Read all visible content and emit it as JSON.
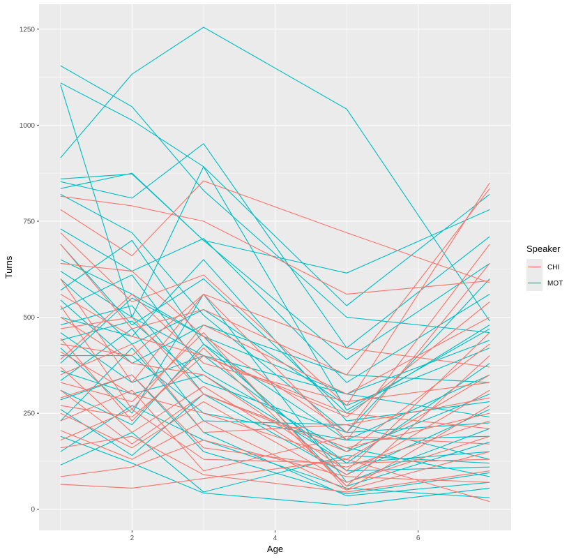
{
  "chart_data": {
    "type": "line",
    "title": "",
    "xlabel": "Age",
    "ylabel": "Turns",
    "xlim": [
      0.7,
      7.3
    ],
    "ylim": [
      -55,
      1315
    ],
    "x_ticks": [
      2,
      4,
      6
    ],
    "x_tick_labels": [
      "2",
      "4",
      "6"
    ],
    "y_ticks": [
      0,
      250,
      500,
      750,
      1000,
      1250
    ],
    "y_tick_labels": [
      "0",
      "250",
      "500",
      "750",
      "1000",
      "1250"
    ],
    "x": [
      1,
      2,
      3,
      5,
      7
    ],
    "grid": true,
    "legend": {
      "title": "Speaker",
      "placement": "right",
      "entries": [
        {
          "label": "CHI",
          "color": "#F8766D"
        },
        {
          "label": "MOT",
          "color": "#00BFC4"
        }
      ]
    },
    "series": [
      {
        "name": "MOT",
        "speaker": "MOT",
        "values": [
          1155,
          1048,
          830,
          500,
          460
        ]
      },
      {
        "name": "MOT",
        "speaker": "MOT",
        "values": [
          1110,
          1013,
          892,
          530,
          820
        ]
      },
      {
        "name": "MOT",
        "speaker": "MOT",
        "values": [
          1105,
          500,
          892,
          258,
          470
        ]
      },
      {
        "name": "MOT",
        "speaker": "MOT",
        "values": [
          915,
          1133,
          1255,
          1042,
          490
        ]
      },
      {
        "name": "MOT",
        "speaker": "MOT",
        "values": [
          860,
          873,
          700,
          615,
          780
        ]
      },
      {
        "name": "MOT",
        "speaker": "MOT",
        "values": [
          853,
          810,
          952,
          420,
          710
        ]
      },
      {
        "name": "MOT",
        "speaker": "MOT",
        "values": [
          835,
          875,
          700,
          390,
          640
        ]
      },
      {
        "name": "MOT",
        "speaker": "MOT",
        "values": [
          820,
          720,
          505,
          200,
          600
        ]
      },
      {
        "name": "MOT",
        "speaker": "MOT",
        "values": [
          730,
          620,
          705,
          330,
          560
        ]
      },
      {
        "name": "MOT",
        "speaker": "MOT",
        "values": [
          690,
          480,
          600,
          250,
          480
        ]
      },
      {
        "name": "MOT",
        "speaker": "MOT",
        "values": [
          650,
          560,
          450,
          300,
          440
        ]
      },
      {
        "name": "MOT",
        "speaker": "MOT",
        "values": [
          620,
          500,
          400,
          120,
          380
        ]
      },
      {
        "name": "MOT",
        "speaker": "MOT",
        "values": [
          600,
          430,
          520,
          270,
          420
        ]
      },
      {
        "name": "MOT",
        "speaker": "MOT",
        "values": [
          570,
          700,
          430,
          180,
          350
        ]
      },
      {
        "name": "MOT",
        "speaker": "MOT",
        "values": [
          545,
          380,
          480,
          350,
          330
        ]
      },
      {
        "name": "MOT",
        "speaker": "MOT",
        "values": [
          520,
          610,
          360,
          150,
          300
        ]
      },
      {
        "name": "MOT",
        "speaker": "MOT",
        "values": [
          500,
          450,
          650,
          230,
          280
        ]
      },
      {
        "name": "MOT",
        "speaker": "MOT",
        "values": [
          480,
          530,
          300,
          90,
          260
        ]
      },
      {
        "name": "MOT",
        "speaker": "MOT",
        "values": [
          460,
          330,
          400,
          300,
          240
        ]
      },
      {
        "name": "MOT",
        "speaker": "MOT",
        "values": [
          440,
          490,
          330,
          200,
          225
        ]
      },
      {
        "name": "MOT",
        "speaker": "MOT",
        "values": [
          420,
          250,
          560,
          70,
          210
        ]
      },
      {
        "name": "MOT",
        "speaker": "MOT",
        "values": [
          400,
          400,
          250,
          180,
          190
        ]
      },
      {
        "name": "MOT",
        "speaker": "MOT",
        "values": [
          380,
          550,
          450,
          60,
          175
        ]
      },
      {
        "name": "MOT",
        "speaker": "MOT",
        "values": [
          360,
          300,
          350,
          120,
          150
        ]
      },
      {
        "name": "MOT",
        "speaker": "MOT",
        "values": [
          335,
          470,
          230,
          220,
          130
        ]
      },
      {
        "name": "MOT",
        "speaker": "MOT",
        "values": [
          310,
          220,
          430,
          100,
          110
        ]
      },
      {
        "name": "MOT",
        "speaker": "MOT",
        "values": [
          285,
          350,
          150,
          40,
          95
        ]
      },
      {
        "name": "MOT",
        "speaker": "MOT",
        "values": [
          260,
          140,
          300,
          160,
          85
        ]
      },
      {
        "name": "MOT",
        "speaker": "MOT",
        "values": [
          230,
          420,
          200,
          35,
          70
        ]
      },
      {
        "name": "MOT",
        "speaker": "MOT",
        "values": [
          190,
          120,
          42,
          10,
          55
        ]
      },
      {
        "name": "MOT",
        "speaker": "MOT",
        "values": [
          150,
          270,
          180,
          55,
          30
        ]
      },
      {
        "name": "MOT",
        "speaker": "MOT",
        "values": [
          115,
          200,
          45,
          140,
          120
        ]
      },
      {
        "name": "CHI",
        "speaker": "CHI",
        "values": [
          815,
          790,
          750,
          560,
          595
        ]
      },
      {
        "name": "CHI",
        "speaker": "CHI",
        "values": [
          780,
          660,
          855,
          720,
          590
        ]
      },
      {
        "name": "CHI",
        "speaker": "CHI",
        "values": [
          720,
          540,
          610,
          270,
          850
        ]
      },
      {
        "name": "CHI",
        "speaker": "CHI",
        "values": [
          690,
          470,
          520,
          350,
          835
        ]
      },
      {
        "name": "CHI",
        "speaker": "CHI",
        "values": [
          640,
          620,
          450,
          200,
          690
        ]
      },
      {
        "name": "CHI",
        "speaker": "CHI",
        "values": [
          600,
          330,
          560,
          180,
          640
        ]
      },
      {
        "name": "CHI",
        "speaker": "CHI",
        "values": [
          560,
          450,
          400,
          240,
          540
        ]
      },
      {
        "name": "CHI",
        "speaker": "CHI",
        "values": [
          530,
          260,
          480,
          300,
          500
        ]
      },
      {
        "name": "CHI",
        "speaker": "CHI",
        "values": [
          500,
          380,
          350,
          100,
          460
        ]
      },
      {
        "name": "CHI",
        "speaker": "CHI",
        "values": [
          470,
          500,
          300,
          150,
          430
        ]
      },
      {
        "name": "CHI",
        "speaker": "CHI",
        "values": [
          445,
          230,
          420,
          60,
          400
        ]
      },
      {
        "name": "CHI",
        "speaker": "CHI",
        "values": [
          430,
          400,
          560,
          420,
          370
        ]
      },
      {
        "name": "CHI",
        "speaker": "CHI",
        "values": [
          410,
          300,
          250,
          130,
          350
        ]
      },
      {
        "name": "CHI",
        "speaker": "CHI",
        "values": [
          390,
          560,
          380,
          280,
          330
        ]
      },
      {
        "name": "CHI",
        "speaker": "CHI",
        "values": [
          370,
          200,
          320,
          90,
          310
        ]
      },
      {
        "name": "CHI",
        "speaker": "CHI",
        "values": [
          350,
          430,
          200,
          220,
          290
        ]
      },
      {
        "name": "CHI",
        "speaker": "CHI",
        "values": [
          330,
          280,
          460,
          50,
          270
        ]
      },
      {
        "name": "CHI",
        "speaker": "CHI",
        "values": [
          310,
          170,
          300,
          160,
          250
        ]
      },
      {
        "name": "CHI",
        "speaker": "CHI",
        "values": [
          290,
          350,
          160,
          110,
          230
        ]
      },
      {
        "name": "CHI",
        "speaker": "CHI",
        "values": [
          270,
          240,
          400,
          250,
          210
        ]
      },
      {
        "name": "CHI",
        "speaker": "CHI",
        "values": [
          250,
          160,
          280,
          70,
          190
        ]
      },
      {
        "name": "CHI",
        "speaker": "CHI",
        "values": [
          230,
          310,
          100,
          190,
          170
        ]
      },
      {
        "name": "CHI",
        "speaker": "CHI",
        "values": [
          205,
          130,
          230,
          50,
          150
        ]
      },
      {
        "name": "CHI",
        "speaker": "CHI",
        "values": [
          180,
          260,
          130,
          120,
          130
        ]
      },
      {
        "name": "CHI",
        "speaker": "CHI",
        "values": [
          160,
          190,
          90,
          45,
          100
        ]
      },
      {
        "name": "CHI",
        "speaker": "CHI",
        "values": [
          85,
          110,
          180,
          85,
          70
        ]
      },
      {
        "name": "CHI",
        "speaker": "CHI",
        "values": [
          65,
          55,
          80,
          130,
          20
        ]
      }
    ]
  }
}
